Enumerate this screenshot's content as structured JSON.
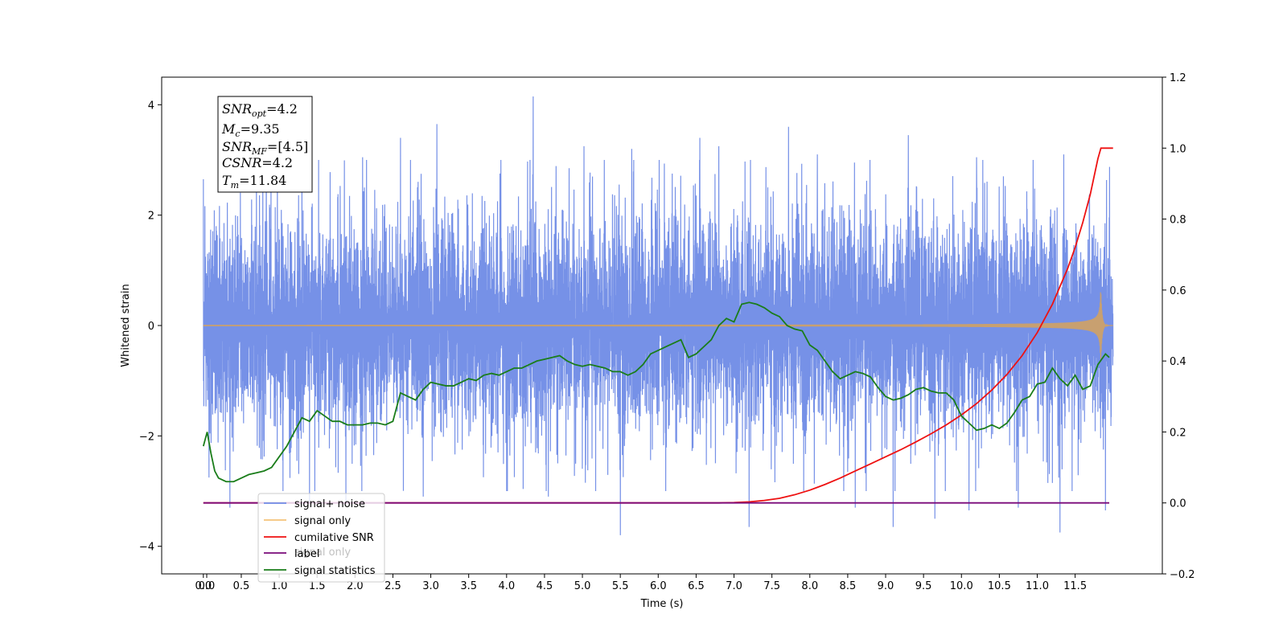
{
  "chart_data": {
    "type": "line",
    "xlabel": "Time (s)",
    "ylabel_left": "Whitened strain",
    "ylabel_right": "",
    "xlim": [
      -0.55,
      12.65
    ],
    "ylim_left": [
      -4.5,
      4.5
    ],
    "ylim_right": [
      -0.2,
      1.2
    ],
    "x_ticks": [
      "0.0",
      "0.0",
      "0.5",
      "1.0",
      "1.5",
      "2.0",
      "2.5",
      "3.0",
      "3.5",
      "4.0",
      "4.5",
      "5.0",
      "5.5",
      "6.0",
      "6.5",
      "7.0",
      "7.5",
      "8.0",
      "8.5",
      "9.0",
      "9.5",
      "10.0",
      "10.5",
      "11.0",
      "11.5"
    ],
    "y_ticks_left": [
      "4",
      "2",
      "0",
      "−2",
      "−4"
    ],
    "y_ticks_right": [
      "1.2",
      "1.0",
      "0.8",
      "0.6",
      "0.4",
      "0.2",
      "0.0",
      "−0.2"
    ],
    "info_box": {
      "line1": {
        "sym": "SNR",
        "sub": "opt",
        "val": "=4.2"
      },
      "line2": {
        "sym": "M",
        "sub": "c",
        "val": "=9.35"
      },
      "line3": {
        "sym": "SNR",
        "sub": "MF",
        "val": "=[4.5]"
      },
      "line4": {
        "sym": "CSNR",
        "sub": "",
        "val": "=4.2"
      },
      "line5": {
        "sym": "T",
        "sub": "m",
        "val": "=11.84"
      }
    },
    "legend": {
      "placement": "lower-left",
      "entries": [
        "signal+ noise",
        "signal only",
        "cumilative SNR",
        "label",
        "signal statistics"
      ],
      "ghost_text": "signal only"
    },
    "colors": {
      "noise": "#6f8be6",
      "signal": "#c8a070",
      "cumulative_snr": "#ee1111",
      "label": "#7a0a7a",
      "statistics": "#1a7d1a"
    },
    "series_meta": {
      "noise": {
        "t_start": 0.0,
        "t_end": 12.0,
        "typical_min": -2.6,
        "typical_max": 2.6
      },
      "signal": {
        "t_start": 0.0,
        "t_end": 12.0,
        "t_merger": 11.84,
        "peak_amplitude": 0.6
      }
    },
    "noise_spikes": [
      {
        "x": 0.0,
        "y": 2.65
      },
      {
        "x": 0.35,
        "y": -3.3
      },
      {
        "x": 0.83,
        "y": 3.1
      },
      {
        "x": 1.3,
        "y": 3.1
      },
      {
        "x": 1.4,
        "y": -3.2
      },
      {
        "x": 1.52,
        "y": 3.0
      },
      {
        "x": 1.88,
        "y": -3.25
      },
      {
        "x": 2.1,
        "y": 3.05
      },
      {
        "x": 2.6,
        "y": 3.4
      },
      {
        "x": 2.9,
        "y": -3.1
      },
      {
        "x": 3.08,
        "y": 3.65
      },
      {
        "x": 4.0,
        "y": -3.0
      },
      {
        "x": 4.35,
        "y": 4.15
      },
      {
        "x": 4.55,
        "y": -3.1
      },
      {
        "x": 5.02,
        "y": 3.25
      },
      {
        "x": 5.5,
        "y": -3.8
      },
      {
        "x": 5.65,
        "y": 3.2
      },
      {
        "x": 6.1,
        "y": -3.0
      },
      {
        "x": 6.55,
        "y": 3.4
      },
      {
        "x": 6.8,
        "y": 3.25
      },
      {
        "x": 7.2,
        "y": -3.65
      },
      {
        "x": 7.72,
        "y": 3.6
      },
      {
        "x": 8.1,
        "y": 3.1
      },
      {
        "x": 8.6,
        "y": -3.3
      },
      {
        "x": 9.1,
        "y": -3.65
      },
      {
        "x": 9.3,
        "y": 3.45
      },
      {
        "x": 9.65,
        "y": -3.5
      },
      {
        "x": 10.1,
        "y": -3.35
      },
      {
        "x": 10.2,
        "y": 3.05
      },
      {
        "x": 10.75,
        "y": -3.3
      },
      {
        "x": 11.3,
        "y": -3.75
      },
      {
        "x": 11.35,
        "y": 3.1
      },
      {
        "x": 11.9,
        "y": -3.35
      }
    ],
    "series": [
      {
        "name": "cumilative SNR",
        "axis": "right",
        "x": [
          0.0,
          6.0,
          6.8,
          7.0,
          7.2,
          7.4,
          7.6,
          7.8,
          8.0,
          8.2,
          8.4,
          8.6,
          8.8,
          9.0,
          9.2,
          9.4,
          9.6,
          9.8,
          10.0,
          10.2,
          10.4,
          10.6,
          10.8,
          11.0,
          11.2,
          11.4,
          11.5,
          11.6,
          11.7,
          11.75,
          11.8,
          11.84,
          12.0
        ],
        "values": [
          0.0,
          0.0,
          0.0,
          0.001,
          0.003,
          0.007,
          0.013,
          0.023,
          0.036,
          0.052,
          0.07,
          0.09,
          0.11,
          0.13,
          0.15,
          0.172,
          0.195,
          0.22,
          0.248,
          0.28,
          0.318,
          0.362,
          0.415,
          0.48,
          0.56,
          0.66,
          0.72,
          0.79,
          0.87,
          0.92,
          0.97,
          1.0,
          1.0
        ]
      },
      {
        "name": "label",
        "axis": "right",
        "x": [
          0.0,
          11.95
        ],
        "values": [
          0.0,
          0.0
        ]
      },
      {
        "name": "signal statistics",
        "axis": "right",
        "x": [
          0.0,
          0.05,
          0.1,
          0.15,
          0.2,
          0.3,
          0.4,
          0.5,
          0.6,
          0.7,
          0.8,
          0.9,
          1.0,
          1.1,
          1.2,
          1.3,
          1.4,
          1.5,
          1.6,
          1.7,
          1.8,
          1.9,
          2.0,
          2.1,
          2.2,
          2.3,
          2.4,
          2.5,
          2.6,
          2.7,
          2.8,
          2.9,
          3.0,
          3.1,
          3.2,
          3.3,
          3.4,
          3.5,
          3.6,
          3.7,
          3.8,
          3.9,
          4.0,
          4.1,
          4.2,
          4.3,
          4.4,
          4.5,
          4.6,
          4.7,
          4.8,
          4.9,
          5.0,
          5.1,
          5.2,
          5.3,
          5.4,
          5.5,
          5.6,
          5.7,
          5.8,
          5.9,
          6.0,
          6.1,
          6.2,
          6.3,
          6.4,
          6.5,
          6.6,
          6.7,
          6.8,
          6.9,
          7.0,
          7.1,
          7.2,
          7.3,
          7.4,
          7.5,
          7.6,
          7.7,
          7.8,
          7.9,
          8.0,
          8.1,
          8.2,
          8.3,
          8.4,
          8.5,
          8.6,
          8.7,
          8.8,
          8.9,
          9.0,
          9.1,
          9.2,
          9.3,
          9.4,
          9.5,
          9.6,
          9.7,
          9.8,
          9.9,
          10.0,
          10.1,
          10.2,
          10.3,
          10.4,
          10.5,
          10.6,
          10.7,
          10.8,
          10.9,
          11.0,
          11.1,
          11.2,
          11.3,
          11.4,
          11.5,
          11.6,
          11.7,
          11.8,
          11.9,
          11.95
        ],
        "values": [
          0.16,
          0.2,
          0.14,
          0.09,
          0.07,
          0.06,
          0.06,
          0.07,
          0.08,
          0.085,
          0.09,
          0.1,
          0.13,
          0.16,
          0.2,
          0.24,
          0.23,
          0.26,
          0.245,
          0.23,
          0.23,
          0.22,
          0.22,
          0.22,
          0.225,
          0.225,
          0.22,
          0.23,
          0.31,
          0.3,
          0.29,
          0.32,
          0.34,
          0.335,
          0.33,
          0.33,
          0.34,
          0.35,
          0.345,
          0.36,
          0.365,
          0.36,
          0.37,
          0.38,
          0.38,
          0.39,
          0.4,
          0.405,
          0.41,
          0.415,
          0.4,
          0.39,
          0.385,
          0.39,
          0.385,
          0.38,
          0.37,
          0.37,
          0.36,
          0.37,
          0.39,
          0.42,
          0.43,
          0.44,
          0.45,
          0.46,
          0.41,
          0.42,
          0.44,
          0.46,
          0.5,
          0.52,
          0.51,
          0.56,
          0.565,
          0.56,
          0.55,
          0.535,
          0.525,
          0.5,
          0.49,
          0.485,
          0.445,
          0.43,
          0.4,
          0.37,
          0.35,
          0.36,
          0.37,
          0.365,
          0.355,
          0.325,
          0.3,
          0.29,
          0.295,
          0.305,
          0.32,
          0.325,
          0.315,
          0.31,
          0.31,
          0.29,
          0.245,
          0.225,
          0.205,
          0.21,
          0.22,
          0.21,
          0.225,
          0.255,
          0.29,
          0.3,
          0.335,
          0.34,
          0.38,
          0.35,
          0.33,
          0.36,
          0.32,
          0.33,
          0.39,
          0.42,
          0.41
        ]
      }
    ]
  }
}
